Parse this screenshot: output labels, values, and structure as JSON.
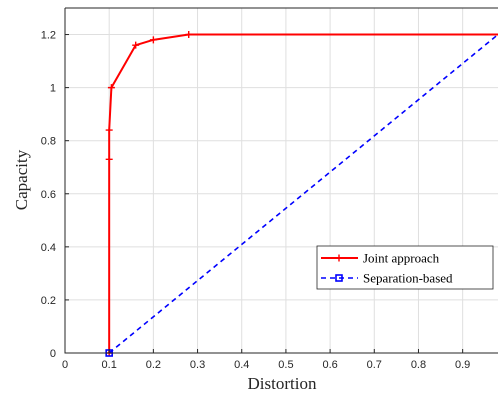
{
  "chart_data": {
    "type": "line",
    "xlabel": "Distortion",
    "ylabel": "Capacity",
    "xlim": [
      0,
      0.98
    ],
    "ylim": [
      0,
      1.3
    ],
    "x_ticks": [
      "0",
      "0.1",
      "0.2",
      "0.3",
      "0.4",
      "0.5",
      "0.6",
      "0.7",
      "0.8",
      "0.9"
    ],
    "y_ticks": [
      "0",
      "0.2",
      "0.4",
      "0.6",
      "0.8",
      "1",
      "1.2"
    ],
    "grid": true,
    "legend_position": "lower-right",
    "series": [
      {
        "name": "Joint approach",
        "color": "#ff0000",
        "line_style": "solid",
        "marker": "plus",
        "points": [
          {
            "x": 0.1,
            "y": 0.0
          },
          {
            "x": 0.1,
            "y": 0.73
          },
          {
            "x": 0.1,
            "y": 0.84
          },
          {
            "x": 0.105,
            "y": 1.0
          },
          {
            "x": 0.16,
            "y": 1.16
          },
          {
            "x": 0.2,
            "y": 1.18
          },
          {
            "x": 0.28,
            "y": 1.2
          },
          {
            "x": 0.98,
            "y": 1.2
          }
        ],
        "marker_points": [
          {
            "x": 0.1,
            "y": 0.0
          },
          {
            "x": 0.1,
            "y": 0.73
          },
          {
            "x": 0.1,
            "y": 0.84
          },
          {
            "x": 0.105,
            "y": 1.0
          },
          {
            "x": 0.16,
            "y": 1.16
          },
          {
            "x": 0.2,
            "y": 1.18
          },
          {
            "x": 0.28,
            "y": 1.2
          }
        ]
      },
      {
        "name": "Separation-based",
        "color": "#0000ff",
        "line_style": "dashed",
        "marker": "square",
        "points": [
          {
            "x": 0.1,
            "y": 0.0
          },
          {
            "x": 0.98,
            "y": 1.2
          }
        ],
        "marker_points": [
          {
            "x": 0.1,
            "y": 0.0
          }
        ]
      }
    ]
  }
}
